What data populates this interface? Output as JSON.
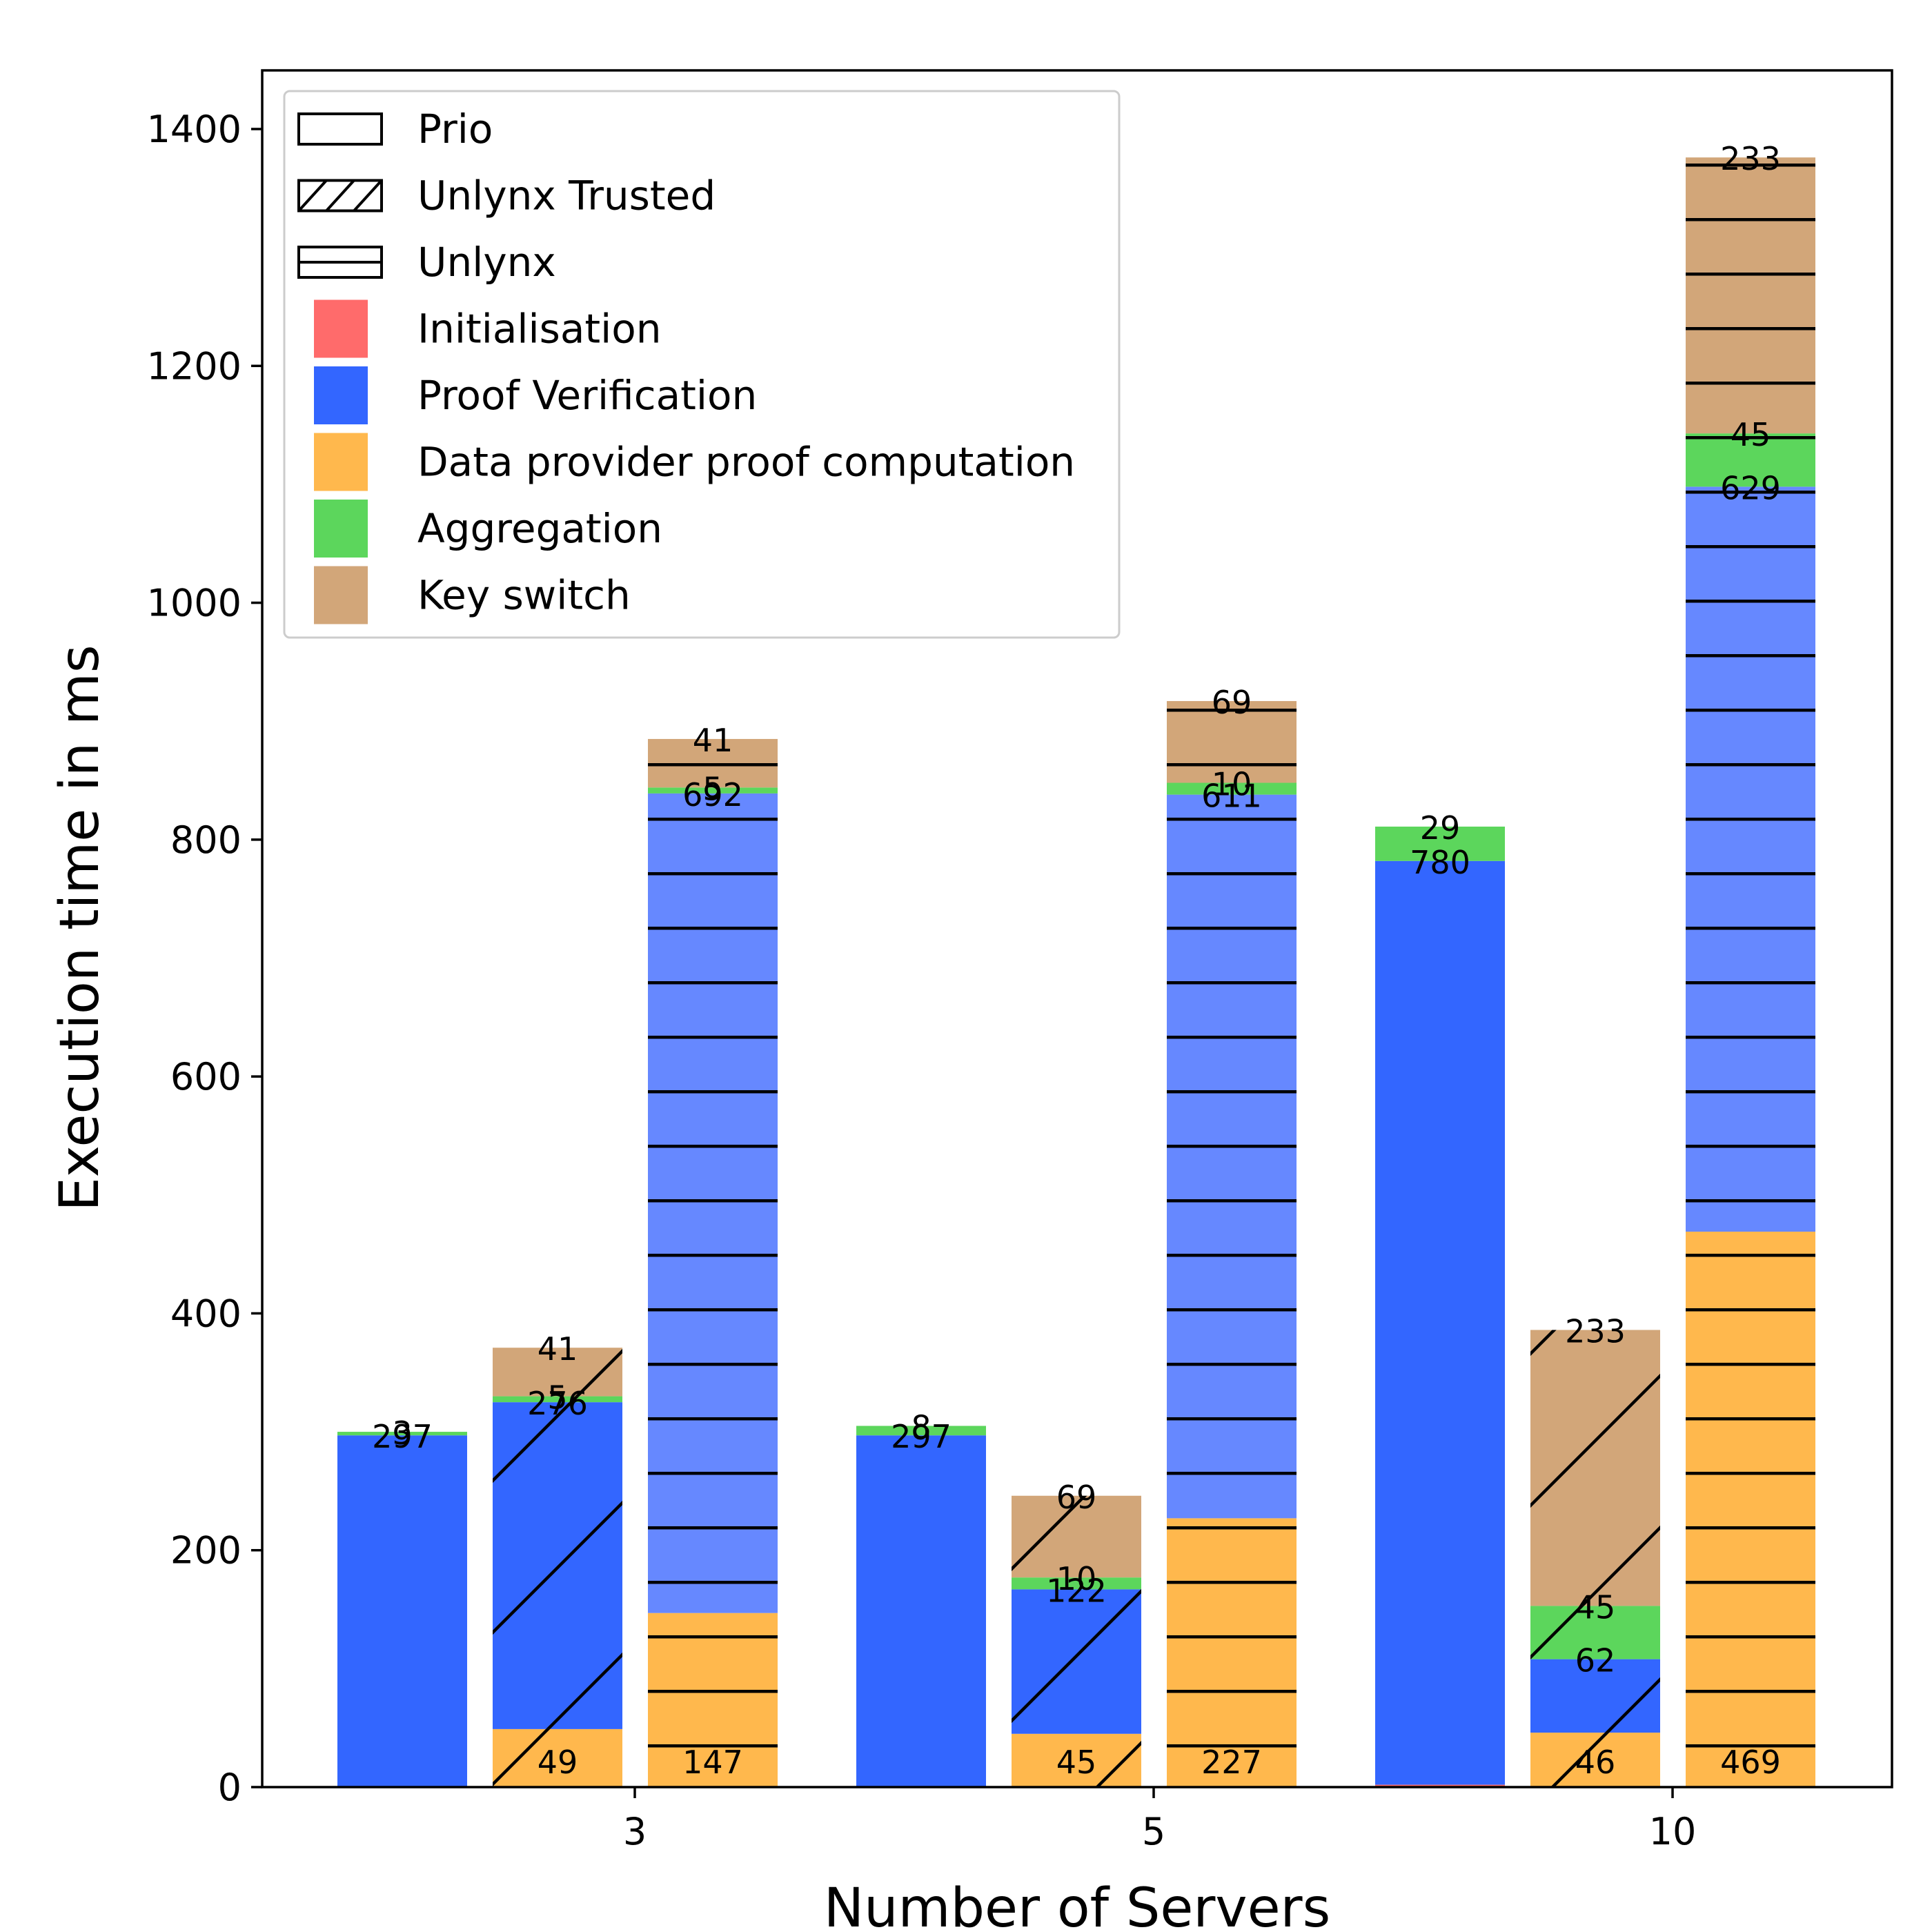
{
  "chart_data": {
    "type": "bar",
    "stacked": true,
    "xlabel": "Number of Servers",
    "ylabel": "Execution time in ms",
    "ylim": [
      0,
      1450
    ],
    "yticks": [
      0,
      200,
      400,
      600,
      800,
      1000,
      1200,
      1400
    ],
    "categories": [
      "3",
      "5",
      "10"
    ],
    "grid": false,
    "legend_position": "top-left",
    "legend": {
      "patterns": [
        {
          "name": "Prio",
          "hatch": "none"
        },
        {
          "name": "Unlynx Trusted",
          "hatch": "diagonal"
        },
        {
          "name": "Unlynx",
          "hatch": "horizontal"
        }
      ],
      "phases": [
        {
          "name": "Initialisation",
          "color": "#ff6b6b"
        },
        {
          "name": "Proof Verification",
          "color": "#3366ff"
        },
        {
          "name": "Data provider proof computation",
          "color": "#ffb84d"
        },
        {
          "name": "Aggregation",
          "color": "#5cd65c"
        },
        {
          "name": "Key switch",
          "color": "#d2a679"
        }
      ]
    },
    "groups": [
      {
        "category": "3",
        "bars": [
          {
            "system": "Prio",
            "segments": [
              {
                "phase": "Proof Verification",
                "value": 297,
                "label": "297"
              },
              {
                "phase": "Aggregation",
                "value": 3,
                "label": "3"
              }
            ]
          },
          {
            "system": "Unlynx Trusted",
            "segments": [
              {
                "phase": "Data provider proof computation",
                "value": 49,
                "label": "49"
              },
              {
                "phase": "Proof Verification",
                "value": 276,
                "label": "276"
              },
              {
                "phase": "Aggregation",
                "value": 5,
                "label": "5"
              },
              {
                "phase": "Key switch",
                "value": 41,
                "label": "41"
              }
            ]
          },
          {
            "system": "Unlynx",
            "segments": [
              {
                "phase": "Data provider proof computation",
                "value": 147,
                "label": "147"
              },
              {
                "phase": "Proof Verification",
                "value": 692,
                "label": "692"
              },
              {
                "phase": "Aggregation",
                "value": 5,
                "label": "5"
              },
              {
                "phase": "Key switch",
                "value": 41,
                "label": "41"
              }
            ]
          }
        ]
      },
      {
        "category": "5",
        "bars": [
          {
            "system": "Prio",
            "segments": [
              {
                "phase": "Proof Verification",
                "value": 297,
                "label": "297"
              },
              {
                "phase": "Aggregation",
                "value": 8,
                "label": "8"
              }
            ]
          },
          {
            "system": "Unlynx Trusted",
            "segments": [
              {
                "phase": "Data provider proof computation",
                "value": 45,
                "label": "45"
              },
              {
                "phase": "Proof Verification",
                "value": 122,
                "label": "122"
              },
              {
                "phase": "Aggregation",
                "value": 10,
                "label": "10"
              },
              {
                "phase": "Key switch",
                "value": 69,
                "label": "69"
              }
            ]
          },
          {
            "system": "Unlynx",
            "segments": [
              {
                "phase": "Data provider proof computation",
                "value": 227,
                "label": "227"
              },
              {
                "phase": "Proof Verification",
                "value": 611,
                "label": "611"
              },
              {
                "phase": "Aggregation",
                "value": 10,
                "label": "10"
              },
              {
                "phase": "Key switch",
                "value": 69,
                "label": "69"
              }
            ]
          }
        ]
      },
      {
        "category": "10",
        "bars": [
          {
            "system": "Prio",
            "segments": [
              {
                "phase": "Initialisation",
                "value": 2,
                "label": ""
              },
              {
                "phase": "Proof Verification",
                "value": 780,
                "label": "780"
              },
              {
                "phase": "Aggregation",
                "value": 29,
                "label": "29"
              }
            ]
          },
          {
            "system": "Unlynx Trusted",
            "segments": [
              {
                "phase": "Data provider proof computation",
                "value": 46,
                "label": "46"
              },
              {
                "phase": "Proof Verification",
                "value": 62,
                "label": "62"
              },
              {
                "phase": "Aggregation",
                "value": 45,
                "label": "45"
              },
              {
                "phase": "Key switch",
                "value": 233,
                "label": "233"
              }
            ]
          },
          {
            "system": "Unlynx",
            "segments": [
              {
                "phase": "Data provider proof computation",
                "value": 469,
                "label": "469"
              },
              {
                "phase": "Proof Verification",
                "value": 629,
                "label": "629"
              },
              {
                "phase": "Aggregation",
                "value": 45,
                "label": "45"
              },
              {
                "phase": "Key switch",
                "value": 233,
                "label": "233"
              }
            ]
          }
        ]
      }
    ]
  }
}
